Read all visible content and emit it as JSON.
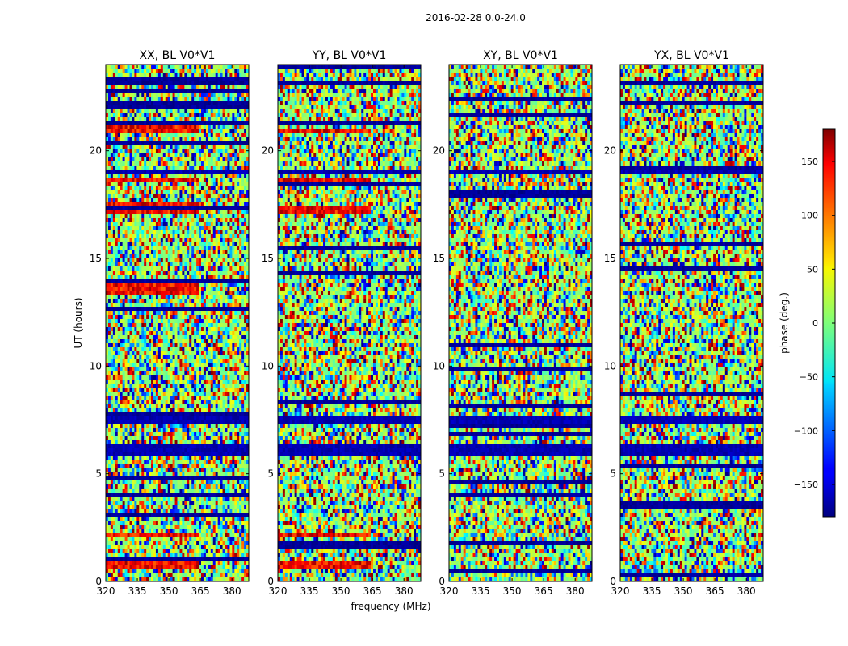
{
  "suptitle": "2016-02-28 0.0-24.0",
  "colorbar": {
    "label": "phase (deg.)",
    "range": [
      -180,
      180
    ],
    "ticks": [
      150,
      100,
      50,
      0,
      -50,
      -100,
      -150
    ],
    "tick_labels": [
      "150",
      "100",
      "50",
      "0",
      "−50",
      "−100",
      "−150"
    ],
    "colormap": "jet"
  },
  "chart_data": {
    "type": "heatmap",
    "title": "2016-02-28 0.0-24.0",
    "xlabel": "frequency (MHz)",
    "ylabel": "UT (hours)",
    "xlim": [
      320,
      388
    ],
    "ylim": [
      0,
      24
    ],
    "x_ticks": [
      320,
      335,
      350,
      365,
      380
    ],
    "y_ticks": [
      0,
      5,
      10,
      15,
      20
    ],
    "value_label": "phase (deg.)",
    "value_range": [
      -180,
      180
    ],
    "panels": [
      {
        "title": "XX, BL V0*V1",
        "polarization": "XX",
        "warm_bands": [
          [
            0.6,
            0.9
          ],
          [
            2.0,
            2.2
          ],
          [
            13.4,
            13.9
          ],
          [
            17.0,
            17.6
          ],
          [
            18.5,
            18.7
          ],
          [
            20.8,
            21.1
          ]
        ]
      },
      {
        "title": "YY, BL V0*V1",
        "polarization": "YY",
        "warm_bands": [
          [
            0.6,
            0.9
          ],
          [
            2.0,
            2.2
          ],
          [
            17.1,
            17.5
          ],
          [
            18.5,
            18.7
          ],
          [
            20.8,
            21.0
          ]
        ]
      },
      {
        "title": "XY, BL V0*V1",
        "polarization": "XY",
        "warm_bands": []
      },
      {
        "title": "YX, BL V0*V1",
        "polarization": "YX",
        "warm_bands": []
      }
    ],
    "flagged_bands_hours": [
      [
        5.8,
        6.3
      ],
      [
        7.4,
        7.6
      ],
      [
        19.0,
        19.15
      ]
    ]
  }
}
